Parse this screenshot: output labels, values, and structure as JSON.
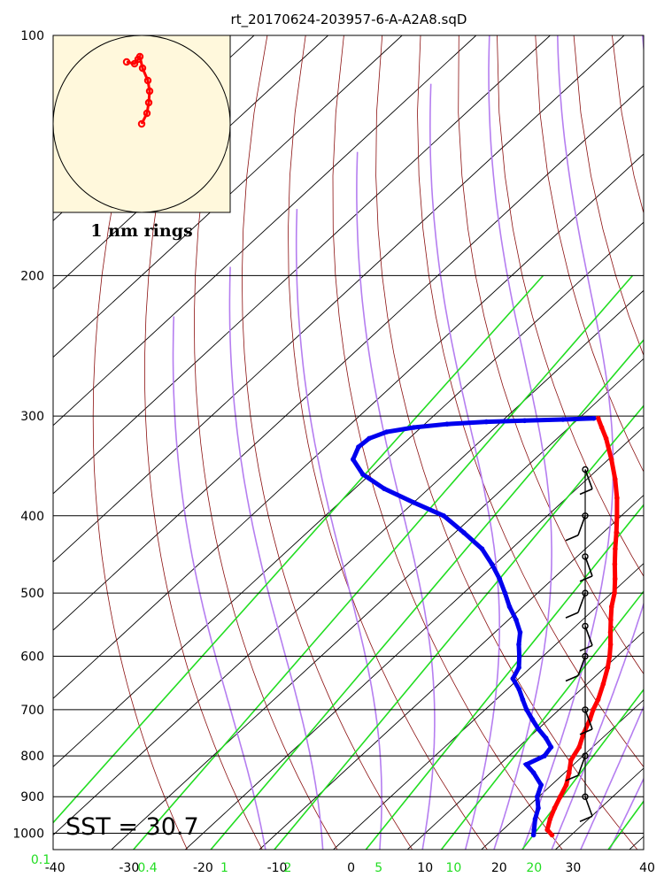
{
  "chart_data": {
    "type": "skew-t",
    "title": "rt_20170624-203957-6-A-A2A8.sqD",
    "pressure_ticks": [
      100,
      200,
      300,
      400,
      500,
      600,
      700,
      800,
      900,
      1000
    ],
    "temperature_ticks": [
      -40,
      -30,
      -20,
      -10,
      0,
      10,
      20,
      30,
      40
    ],
    "mixing_ratio_ticks": [
      {
        "label": "0.1",
        "value": 0.1
      },
      {
        "label": "0.4",
        "value": 0.4
      },
      {
        "label": "1",
        "value": 1
      },
      {
        "label": "2",
        "value": 2
      },
      {
        "label": "5",
        "value": 5
      },
      {
        "label": "10",
        "value": 10
      },
      {
        "label": "20",
        "value": 20
      }
    ],
    "temperature_range": [
      -40,
      40
    ],
    "pressure_range": [
      1050,
      100
    ],
    "dry_adiabats_theta_K": [
      250,
      260,
      270,
      280,
      290,
      300,
      310,
      320,
      330,
      340,
      350,
      360,
      370,
      380,
      390,
      400,
      410,
      420,
      430,
      440,
      450,
      460,
      470,
      480,
      490,
      500,
      510,
      520,
      530,
      540,
      550,
      560,
      570,
      580,
      590,
      600,
      610,
      620,
      630,
      640,
      650,
      660
    ],
    "moist_adiabats_start_C_at_1000": [
      -12,
      -4,
      4,
      10,
      16,
      20,
      24,
      28,
      32,
      36
    ],
    "mixing_lines_gkg": [
      0.1,
      0.4,
      1,
      2,
      5,
      10,
      20,
      40,
      70
    ],
    "temperature_profile": [
      {
        "p": 1005,
        "t": 27.4
      },
      {
        "p": 990,
        "t": 26.0
      },
      {
        "p": 960,
        "t": 24.8
      },
      {
        "p": 930,
        "t": 23.8
      },
      {
        "p": 900,
        "t": 22.9
      },
      {
        "p": 870,
        "t": 22.0
      },
      {
        "p": 840,
        "t": 20.6
      },
      {
        "p": 810,
        "t": 19.0
      },
      {
        "p": 780,
        "t": 18.2
      },
      {
        "p": 750,
        "t": 16.8
      },
      {
        "p": 720,
        "t": 15.6
      },
      {
        "p": 700,
        "t": 14.6
      },
      {
        "p": 680,
        "t": 13.8
      },
      {
        "p": 650,
        "t": 12.2
      },
      {
        "p": 620,
        "t": 10.4
      },
      {
        "p": 600,
        "t": 9.0
      },
      {
        "p": 580,
        "t": 7.4
      },
      {
        "p": 560,
        "t": 5.6
      },
      {
        "p": 540,
        "t": 3.8
      },
      {
        "p": 520,
        "t": 2.0
      },
      {
        "p": 500,
        "t": 0.4
      },
      {
        "p": 480,
        "t": -1.6
      },
      {
        "p": 460,
        "t": -3.8
      },
      {
        "p": 440,
        "t": -6.0
      },
      {
        "p": 420,
        "t": -8.2
      },
      {
        "p": 400,
        "t": -10.6
      },
      {
        "p": 380,
        "t": -13.2
      },
      {
        "p": 360,
        "t": -16.2
      },
      {
        "p": 340,
        "t": -19.6
      },
      {
        "p": 320,
        "t": -23.4
      },
      {
        "p": 310,
        "t": -25.6
      },
      {
        "p": 302,
        "t": -27.4
      }
    ],
    "dewpoint_profile": [
      {
        "p": 1005,
        "t": 24.9
      },
      {
        "p": 990,
        "t": 24.2
      },
      {
        "p": 960,
        "t": 22.8
      },
      {
        "p": 930,
        "t": 21.6
      },
      {
        "p": 900,
        "t": 19.8
      },
      {
        "p": 870,
        "t": 18.6
      },
      {
        "p": 840,
        "t": 15.8
      },
      {
        "p": 820,
        "t": 13.6
      },
      {
        "p": 800,
        "t": 14.8
      },
      {
        "p": 780,
        "t": 14.4
      },
      {
        "p": 760,
        "t": 12.4
      },
      {
        "p": 740,
        "t": 10.0
      },
      {
        "p": 720,
        "t": 7.8
      },
      {
        "p": 700,
        "t": 5.6
      },
      {
        "p": 680,
        "t": 3.6
      },
      {
        "p": 660,
        "t": 1.6
      },
      {
        "p": 640,
        "t": -0.8
      },
      {
        "p": 620,
        "t": -1.6
      },
      {
        "p": 600,
        "t": -3.2
      },
      {
        "p": 580,
        "t": -5.0
      },
      {
        "p": 560,
        "t": -6.6
      },
      {
        "p": 540,
        "t": -9.0
      },
      {
        "p": 520,
        "t": -11.8
      },
      {
        "p": 500,
        "t": -14.4
      },
      {
        "p": 480,
        "t": -17.2
      },
      {
        "p": 460,
        "t": -20.4
      },
      {
        "p": 440,
        "t": -24.0
      },
      {
        "p": 420,
        "t": -28.8
      },
      {
        "p": 400,
        "t": -34.0
      },
      {
        "p": 385,
        "t": -40.0
      },
      {
        "p": 370,
        "t": -46.0
      },
      {
        "p": 355,
        "t": -51.0
      },
      {
        "p": 340,
        "t": -54.5
      },
      {
        "p": 328,
        "t": -55.6
      },
      {
        "p": 320,
        "t": -55.4
      },
      {
        "p": 314,
        "t": -54.0
      },
      {
        "p": 310,
        "t": -51.0
      },
      {
        "p": 307,
        "t": -47.0
      },
      {
        "p": 305,
        "t": -42.0
      },
      {
        "p": 304,
        "t": -37.0
      },
      {
        "p": 303,
        "t": -32.0
      },
      {
        "p": 302,
        "t": -28.0
      }
    ],
    "wind_barbs": [
      {
        "p": 350
      },
      {
        "p": 400
      },
      {
        "p": 450
      },
      {
        "p": 500
      },
      {
        "p": 550
      },
      {
        "p": 600
      },
      {
        "p": 700
      },
      {
        "p": 800
      },
      {
        "p": 900
      }
    ],
    "hodograph_label": "1 nm rings",
    "sst_label": "SST = 30.7"
  }
}
